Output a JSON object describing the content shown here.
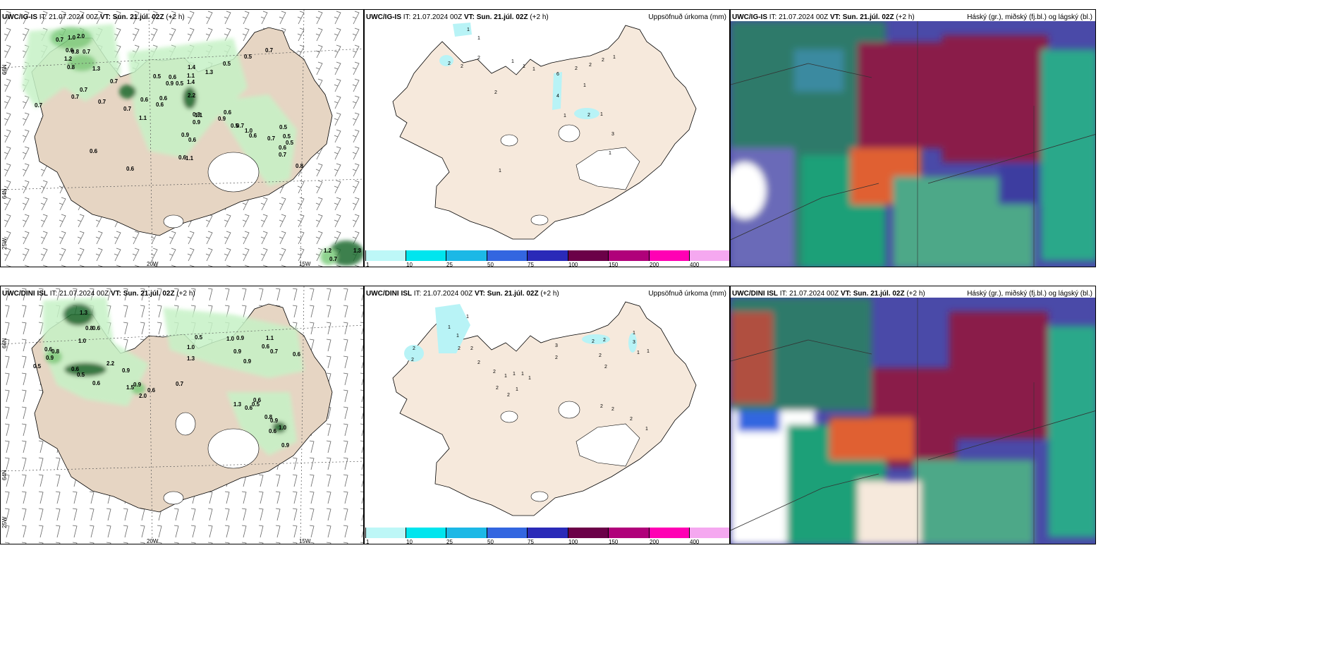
{
  "panels": {
    "p1": {
      "model": "UWC/IG-IS",
      "it_label": "IT:",
      "it": "21.07.2024 00Z",
      "vt_label": "VT:",
      "vt": "Sun. 21.júl. 02Z",
      "offset": "(+2 h)"
    },
    "p2": {
      "model": "UWC/IG-IS",
      "it_label": "IT:",
      "it": "21.07.2024 00Z",
      "vt_label": "VT:",
      "vt": "Sun. 21.júl. 02Z",
      "offset": "(+2 h)",
      "right": "Uppsöfnuð úrkoma (mm)"
    },
    "p3": {
      "model": "UWC/IG-IS",
      "it_label": "IT:",
      "it": "21.07.2024 00Z",
      "vt_label": "VT:",
      "vt": "Sun. 21.júl. 02Z",
      "offset": "(+2 h)",
      "right": "Háský (gr.), miðský (fj.bl.) og lágský (bl.)"
    },
    "p4": {
      "model": "UWC/DINI ISL",
      "it_label": "IT:",
      "it": "21.07.2024 00Z",
      "vt_label": "VT:",
      "vt": "Sun. 21.júl. 02Z",
      "offset": "(+2 h)"
    },
    "p5": {
      "model": "UWC/DINI ISL",
      "it_label": "IT:",
      "it": "21.07.2024 00Z",
      "vt_label": "VT:",
      "vt": "Sun. 21.júl. 02Z",
      "offset": "(+2 h)",
      "right": "Uppsöfnuð úrkoma (mm)"
    },
    "p6": {
      "model": "UWC/DINI ISL",
      "it_label": "IT:",
      "it": "21.07.2024 00Z",
      "vt_label": "VT:",
      "vt": "Sun. 21.júl. 02Z",
      "offset": "(+2 h)",
      "right": "Háský (gr.), miðský (fj.bl.) og lágský (bl.)"
    }
  },
  "axis_labels": {
    "lat66": "66N",
    "lat64": "64N",
    "lon25": "25W",
    "lon20": "20W",
    "lon15": "15W"
  },
  "colorbar": {
    "ticks": [
      "1",
      "10",
      "25",
      "50",
      "75",
      "100",
      "150",
      "200",
      "400"
    ],
    "colors": [
      "#bdf7f7",
      "#00e5ee",
      "#1cb8e6",
      "#3366e0",
      "#2a2ab8",
      "#6b0048",
      "#b0007a",
      "#ff00b4",
      "#f5a8f0"
    ]
  },
  "colors": {
    "land": "#f6e9dc",
    "land_wind": "#e6d5c3",
    "precip_light": "#c6f2c6",
    "precip_mid": "#7ccc7c",
    "precip_dark": "#1e6b2e",
    "accum": "#b8f3f6",
    "high_cloud": "#7b7b7b",
    "mid_cloud": "#6a5cc0",
    "low_cloud": "#1ea078",
    "maroon": "#8a1b4a"
  },
  "precip_labels": {
    "p1": [
      "0.7",
      "1.0",
      "2.0",
      "0.6",
      "0.8",
      "0.7",
      "1.2",
      "0.8",
      "1.3",
      "0.5",
      "0.6",
      "0.5",
      "1.1",
      "1.4",
      "1.3",
      "0.5",
      "0.7",
      "0.9",
      "0.5",
      "0.6",
      "0.7",
      "0.7",
      "1.1",
      "0.8",
      "0.9",
      "1.0",
      "0.6",
      "0.5",
      "0.7",
      "0.8",
      "0.6",
      "0.6",
      "1.1",
      "0.5",
      "0.6",
      "1.2",
      "1.8",
      "1.3",
      "0.7",
      "0.6",
      "0.5",
      "0.7",
      "0.6",
      "0.6",
      "0.7",
      "0.7",
      "2.2",
      "1.1",
      "0.5",
      "0.5",
      "0.7"
    ],
    "p4": [
      "1.3",
      "0.8",
      "0.6",
      "1.0",
      "0.6",
      "0.8",
      "0.9",
      "0.5",
      "2.2",
      "0.9",
      "0.6",
      "0.5",
      "2.0",
      "0.6",
      "1.5",
      "0.7",
      "1.0",
      "0.5",
      "1.3",
      "1.0",
      "0.9",
      "0.9",
      "0.9",
      "1.1",
      "0.6",
      "0.7",
      "0.6",
      "1.3",
      "0.6",
      "0.5",
      "0.6",
      "0.8",
      "0.9",
      "0.6",
      "1.0",
      "0.9",
      "0.9",
      "0.6"
    ]
  },
  "accum_labels": {
    "p2": [
      "1",
      "2",
      "2",
      "2",
      "1",
      "2",
      "1",
      "1",
      "1",
      "6",
      "4",
      "2",
      "2",
      "2",
      "1",
      "1",
      "1",
      "2",
      "1",
      "3",
      "1",
      "1"
    ],
    "p5": [
      "1",
      "1",
      "1",
      "2",
      "2",
      "2",
      "2",
      "1",
      "1",
      "1",
      "1",
      "2",
      "2",
      "3",
      "2",
      "2",
      "2",
      "2",
      "1",
      "1",
      "3",
      "1",
      "1",
      "2",
      "2",
      "2",
      "2"
    ]
  }
}
